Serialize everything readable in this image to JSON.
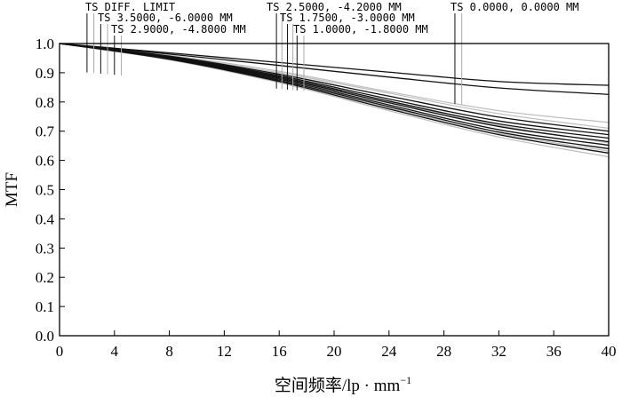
{
  "chart_data": {
    "type": "line",
    "xlabel": "空间频率/lp · mm",
    "xlabel_sup": "−1",
    "ylabel": "MTF",
    "xlim": [
      0,
      40
    ],
    "ylim": [
      0,
      1
    ],
    "x_ticks": [
      0,
      4,
      8,
      12,
      16,
      20,
      24,
      28,
      32,
      36,
      40
    ],
    "y_ticks": [
      "0.0",
      "0.1",
      "0.2",
      "0.3",
      "0.4",
      "0.5",
      "0.6",
      "0.7",
      "0.8",
      "0.9",
      "1.0"
    ],
    "grid": false,
    "legend": [
      {
        "label": "TS DIFF. LIMIT",
        "x": [
          2.0,
          2.5
        ]
      },
      {
        "label": "TS 3.5000, -6.0000 MM",
        "x": [
          3.0,
          3.5
        ]
      },
      {
        "label": "TS 2.9000, -4.8000 MM",
        "x": [
          4.0,
          4.5
        ]
      },
      {
        "label": "TS 2.5000, -4.2000 MM",
        "x": [
          15.8,
          16.2
        ]
      },
      {
        "label": "TS 1.7500, -3.0000 MM",
        "x": [
          16.6,
          17.0
        ]
      },
      {
        "label": "TS 1.0000, -1.8000 MM",
        "x": [
          17.3,
          17.8
        ]
      },
      {
        "label": "TS 0.0000, 0.0000 MM",
        "x": [
          28.8,
          29.3
        ]
      }
    ],
    "series": [
      {
        "color": "#111111",
        "x": [
          0,
          8,
          16,
          24,
          32,
          40
        ],
        "y": [
          1.0,
          0.968,
          0.935,
          0.902,
          0.87,
          0.857
        ]
      },
      {
        "color": "#111111",
        "x": [
          0,
          8,
          16,
          24,
          32,
          40
        ],
        "y": [
          1.0,
          0.964,
          0.925,
          0.885,
          0.848,
          0.826
        ]
      },
      {
        "color": "#111111",
        "x": [
          0,
          8,
          16,
          24,
          32,
          40
        ],
        "y": [
          1.0,
          0.957,
          0.895,
          0.82,
          0.748,
          0.7
        ]
      },
      {
        "color": "#111111",
        "x": [
          0,
          8,
          16,
          24,
          32,
          40
        ],
        "y": [
          1.0,
          0.955,
          0.89,
          0.81,
          0.735,
          0.688
        ]
      },
      {
        "color": "#111111",
        "x": [
          0,
          8,
          16,
          24,
          32,
          40
        ],
        "y": [
          1.0,
          0.953,
          0.886,
          0.803,
          0.725,
          0.676
        ]
      },
      {
        "color": "#111111",
        "x": [
          0,
          8,
          16,
          24,
          32,
          40
        ],
        "y": [
          1.0,
          0.951,
          0.882,
          0.797,
          0.716,
          0.664
        ]
      },
      {
        "color": "#111111",
        "x": [
          0,
          8,
          16,
          24,
          32,
          40
        ],
        "y": [
          1.0,
          0.949,
          0.878,
          0.79,
          0.705,
          0.652
        ]
      },
      {
        "color": "#111111",
        "x": [
          0,
          8,
          16,
          24,
          32,
          40
        ],
        "y": [
          1.0,
          0.948,
          0.874,
          0.784,
          0.697,
          0.64
        ]
      },
      {
        "color": "#111111",
        "x": [
          0,
          8,
          16,
          24,
          32,
          40
        ],
        "y": [
          1.0,
          0.946,
          0.87,
          0.776,
          0.688,
          0.625
        ]
      },
      {
        "color": "#bdbdbd",
        "x": [
          0,
          8,
          16,
          24,
          32,
          40
        ],
        "y": [
          1.0,
          0.96,
          0.905,
          0.835,
          0.77,
          0.73
        ]
      },
      {
        "color": "#bdbdbd",
        "x": [
          0,
          8,
          16,
          24,
          32,
          40
        ],
        "y": [
          1.0,
          0.958,
          0.9,
          0.83,
          0.76,
          0.71
        ]
      },
      {
        "color": "#bdbdbd",
        "x": [
          0,
          8,
          16,
          24,
          32,
          40
        ],
        "y": [
          1.0,
          0.952,
          0.884,
          0.8,
          0.72,
          0.66
        ]
      },
      {
        "color": "#bdbdbd",
        "x": [
          0,
          8,
          16,
          24,
          32,
          40
        ],
        "y": [
          1.0,
          0.947,
          0.872,
          0.78,
          0.692,
          0.632
        ]
      },
      {
        "color": "#bdbdbd",
        "x": [
          0,
          8,
          16,
          24,
          32,
          40
        ],
        "y": [
          1.0,
          0.944,
          0.866,
          0.77,
          0.68,
          0.612
        ]
      }
    ]
  }
}
